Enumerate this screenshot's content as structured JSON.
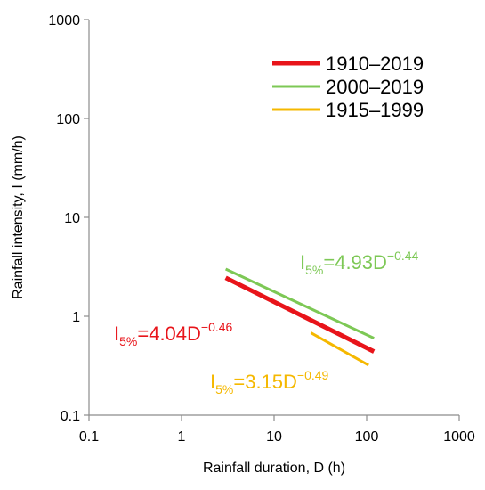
{
  "chart_data": {
    "type": "line",
    "title": "",
    "xlabel": "Rainfall duration, D (h)",
    "ylabel": "Rainfall intensity, I (mm/h)",
    "xscale": "log",
    "yscale": "log",
    "xlim": [
      0.1,
      1000
    ],
    "ylim": [
      0.1,
      1000
    ],
    "x_ticks": [
      "0.1",
      "1",
      "10",
      "100",
      "1000"
    ],
    "y_ticks": [
      "0.1",
      "1",
      "10",
      "100",
      "1000"
    ],
    "legend_position": "top-right",
    "series": [
      {
        "name": "1910–2019",
        "color": "#e8141a",
        "x": [
          3,
          120
        ],
        "y": [
          2.45,
          0.44
        ],
        "equation": {
          "base": "I",
          "sub": "5%",
          "coef": "=4.04D",
          "exp": "−0.46"
        }
      },
      {
        "name": "2000–2019",
        "color": "#7dc855",
        "x": [
          3,
          120
        ],
        "y": [
          3.0,
          0.6
        ],
        "equation": {
          "base": "I",
          "sub": "5%",
          "coef": "=4.93D",
          "exp": "−0.44"
        }
      },
      {
        "name": "1915–1999",
        "color": "#f5b800",
        "x": [
          25,
          105
        ],
        "y": [
          0.68,
          0.32
        ],
        "equation": {
          "base": "I",
          "sub": "5%",
          "coef": "=3.15D",
          "exp": "−0.49"
        }
      }
    ]
  }
}
